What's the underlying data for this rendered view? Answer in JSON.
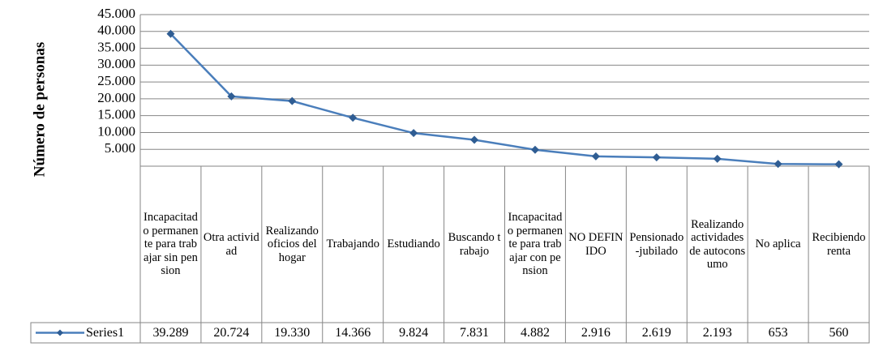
{
  "chart_data": {
    "type": "line",
    "y_label": "Número de personas",
    "categories": [
      "Incapacitado permanente para trabajar sin pension",
      "Otra actividad",
      "Realizando oficios del hogar",
      "Trabajando",
      "Estudiando",
      "Buscando trabajo",
      "Incapacitado permanente para trabajar con pension",
      "NO DEFINIDO",
      "Pensionado-jubilado",
      "Realizando actividades de autoconsumo",
      "No aplica",
      "Recibiendo renta"
    ],
    "series": [
      {
        "name": "Series1",
        "color": "#4a7ebb",
        "marker_color": "#2f5d93",
        "values": [
          39289,
          20724,
          19330,
          14366,
          9824,
          7831,
          4882,
          2916,
          2619,
          2193,
          653,
          560
        ],
        "value_labels": [
          "39.289",
          "20.724",
          "19.330",
          "14.366",
          "9.824",
          "7.831",
          "4.882",
          "2.916",
          "2.619",
          "2.193",
          "653",
          "560"
        ]
      }
    ],
    "ylim": [
      0,
      45000
    ],
    "yticks": [
      {
        "value": 5000,
        "label": "5.000"
      },
      {
        "value": 10000,
        "label": "10.000"
      },
      {
        "value": 15000,
        "label": "15.000"
      },
      {
        "value": 20000,
        "label": "20.000"
      },
      {
        "value": 25000,
        "label": "25.000"
      },
      {
        "value": 30000,
        "label": "30.000"
      },
      {
        "value": 35000,
        "label": "35.000"
      },
      {
        "value": 40000,
        "label": "40.000"
      },
      {
        "value": 45000,
        "label": "45.000"
      }
    ],
    "grid": true
  }
}
